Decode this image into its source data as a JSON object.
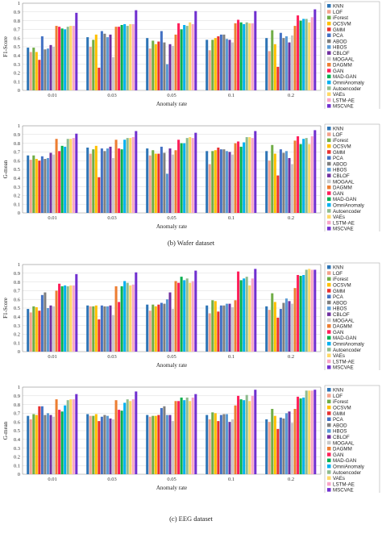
{
  "colors": [
    "#2e75b6",
    "#f4a28c",
    "#70ad47",
    "#ffc000",
    "#e83030",
    "#4472c4",
    "#7f7f7f",
    "#5b9bd5",
    "#7030a0",
    "#c9c9c9",
    "#ed7d31",
    "#ff1f5a",
    "#00b050",
    "#00b0f0",
    "#8fbc8f",
    "#ffd966",
    "#f8a5c8",
    "#7030d0"
  ],
  "captions": [
    "(b)   Wafer dataset",
    "(c)   EEG dataset"
  ],
  "chart_data": [
    {
      "type": "bar",
      "ylabel": "F1-Score",
      "xlabel": "Anomaly rate",
      "categories": [
        "0.01",
        "0.03",
        "0.05",
        "0.1",
        "0.2"
      ],
      "ylim": [
        0,
        1
      ],
      "yticks": [
        "0",
        "0.1",
        "0.2",
        "0.3",
        "0.4",
        "0.5",
        "0.6",
        "0.7",
        "0.8",
        "0.9",
        "1"
      ],
      "grid": true,
      "legend_position": "right",
      "series": [
        {
          "name": "KNN",
          "values": [
            0.49,
            0.61,
            0.6,
            0.58,
            0.6
          ]
        },
        {
          "name": "LOF",
          "values": [
            0.44,
            0.5,
            0.48,
            0.46,
            0.45
          ]
        },
        {
          "name": "iForest",
          "values": [
            0.49,
            0.58,
            0.57,
            0.58,
            0.69
          ]
        },
        {
          "name": "OCSVM",
          "values": [
            0.44,
            0.64,
            0.53,
            0.6,
            0.53
          ]
        },
        {
          "name": "GMM",
          "values": [
            0.35,
            0.26,
            0.56,
            0.62,
            0.27
          ]
        },
        {
          "name": "PCA",
          "values": [
            0.62,
            0.68,
            0.68,
            0.64,
            0.66
          ]
        },
        {
          "name": "ABOD",
          "values": [
            0.47,
            0.65,
            0.55,
            0.64,
            0.6
          ]
        },
        {
          "name": "HBOS",
          "values": [
            0.48,
            0.61,
            0.3,
            0.59,
            0.62
          ]
        },
        {
          "name": "CBLOF",
          "values": [
            0.52,
            0.64,
            0.53,
            0.58,
            0.55
          ]
        },
        {
          "name": "MOGAAL",
          "values": [
            0.5,
            0.38,
            0.51,
            0.55,
            0.63
          ]
        },
        {
          "name": "DAGMM",
          "values": [
            0.74,
            0.73,
            0.64,
            0.77,
            0.74
          ]
        },
        {
          "name": "GAN",
          "values": [
            0.73,
            0.73,
            0.77,
            0.81,
            0.86
          ]
        },
        {
          "name": "MAD-GAN",
          "values": [
            0.71,
            0.75,
            0.7,
            0.78,
            0.8
          ]
        },
        {
          "name": "OmniAnomaly",
          "values": [
            0.7,
            0.76,
            0.75,
            0.76,
            0.82
          ]
        },
        {
          "name": "Autoencoder",
          "values": [
            0.73,
            0.74,
            0.74,
            0.78,
            0.82
          ]
        },
        {
          "name": "VAEs",
          "values": [
            0.74,
            0.76,
            0.78,
            0.77,
            0.78
          ]
        },
        {
          "name": "LSTM-AE",
          "values": [
            0.74,
            0.76,
            0.76,
            0.77,
            0.84
          ]
        },
        {
          "name": "MSCVAE",
          "values": [
            0.89,
            0.92,
            0.91,
            0.91,
            0.93
          ]
        }
      ]
    },
    {
      "type": "bar",
      "ylabel": "G-mean",
      "xlabel": "Anomaly rate",
      "categories": [
        "0.01",
        "0.03",
        "0.05",
        "0.1",
        "0.2"
      ],
      "ylim": [
        0,
        1
      ],
      "yticks": [
        "0",
        "0.1",
        "0.2",
        "0.3",
        "0.4",
        "0.5",
        "0.6",
        "0.7",
        "0.8",
        "0.9",
        "1"
      ],
      "grid": true,
      "legend_position": "right",
      "series": [
        {
          "name": "KNN",
          "values": [
            0.66,
            0.75,
            0.74,
            0.71,
            0.71
          ]
        },
        {
          "name": "LOF",
          "values": [
            0.61,
            0.68,
            0.66,
            0.56,
            0.6
          ]
        },
        {
          "name": "iForest",
          "values": [
            0.66,
            0.73,
            0.72,
            0.71,
            0.78
          ]
        },
        {
          "name": "OCSVM",
          "values": [
            0.62,
            0.77,
            0.68,
            0.72,
            0.68
          ]
        },
        {
          "name": "GMM",
          "values": [
            0.6,
            0.41,
            0.68,
            0.75,
            0.43
          ]
        },
        {
          "name": "PCA",
          "values": [
            0.65,
            0.74,
            0.76,
            0.73,
            0.73
          ]
        },
        {
          "name": "ABOD",
          "values": [
            0.62,
            0.71,
            0.69,
            0.73,
            0.69
          ]
        },
        {
          "name": "HBOS",
          "values": [
            0.63,
            0.74,
            0.45,
            0.71,
            0.71
          ]
        },
        {
          "name": "CBLOF",
          "values": [
            0.69,
            0.76,
            0.74,
            0.7,
            0.63
          ]
        },
        {
          "name": "MOGAAL",
          "values": [
            0.67,
            0.63,
            0.67,
            0.67,
            0.56
          ]
        },
        {
          "name": "DAGMM",
          "values": [
            0.85,
            0.84,
            0.72,
            0.8,
            0.83
          ]
        },
        {
          "name": "GAN",
          "values": [
            0.71,
            0.74,
            0.84,
            0.82,
            0.88
          ]
        },
        {
          "name": "MAD-GAN",
          "values": [
            0.77,
            0.73,
            0.8,
            0.76,
            0.79
          ]
        },
        {
          "name": "OmniAnomaly",
          "values": [
            0.76,
            0.84,
            0.8,
            0.81,
            0.85
          ]
        },
        {
          "name": "Autoencoder",
          "values": [
            0.85,
            0.86,
            0.86,
            0.87,
            0.86
          ]
        },
        {
          "name": "VAEs",
          "values": [
            0.85,
            0.86,
            0.87,
            0.87,
            0.79
          ]
        },
        {
          "name": "LSTM-AE",
          "values": [
            0.86,
            0.87,
            0.86,
            0.86,
            0.88
          ]
        },
        {
          "name": "MSCVAE",
          "values": [
            0.91,
            0.94,
            0.92,
            0.94,
            0.95
          ]
        }
      ]
    },
    {
      "type": "bar",
      "ylabel": "F1-Score",
      "xlabel": "Anomaly rate",
      "categories": [
        "0.01",
        "0.03",
        "0.05",
        "0.1",
        "0.2"
      ],
      "ylim": [
        0,
        1
      ],
      "yticks": [
        "0",
        "0.1",
        "0.2",
        "0.3",
        "0.4",
        "0.5",
        "0.6",
        "0.7",
        "0.8",
        "0.9",
        "1"
      ],
      "grid": true,
      "legend_position": "right",
      "series": [
        {
          "name": "KNN",
          "values": [
            0.49,
            0.53,
            0.54,
            0.53,
            0.52
          ]
        },
        {
          "name": "LOF",
          "values": [
            0.45,
            0.52,
            0.47,
            0.44,
            0.48
          ]
        },
        {
          "name": "iForest",
          "values": [
            0.52,
            0.52,
            0.54,
            0.59,
            0.67
          ]
        },
        {
          "name": "OCSVM",
          "values": [
            0.51,
            0.53,
            0.52,
            0.58,
            0.57
          ]
        },
        {
          "name": "GMM",
          "values": [
            0.47,
            0.37,
            0.54,
            0.46,
            0.39
          ]
        },
        {
          "name": "PCA",
          "values": [
            0.65,
            0.53,
            0.56,
            0.53,
            0.49
          ]
        },
        {
          "name": "ABOD",
          "values": [
            0.68,
            0.52,
            0.55,
            0.53,
            0.56
          ]
        },
        {
          "name": "HBOS",
          "values": [
            0.5,
            0.52,
            0.6,
            0.55,
            0.61
          ]
        },
        {
          "name": "CBLOF",
          "values": [
            0.53,
            0.53,
            0.68,
            0.55,
            0.58
          ]
        },
        {
          "name": "MOGAAL",
          "values": [
            0.52,
            0.42,
            0.49,
            0.51,
            0.55
          ]
        },
        {
          "name": "DAGMM",
          "values": [
            0.7,
            0.75,
            0.81,
            0.59,
            0.73
          ]
        },
        {
          "name": "GAN",
          "values": [
            0.78,
            0.57,
            0.79,
            0.92,
            0.88
          ]
        },
        {
          "name": "MAD-GAN",
          "values": [
            0.75,
            0.75,
            0.86,
            0.82,
            0.87
          ]
        },
        {
          "name": "OmniAnomaly",
          "values": [
            0.76,
            0.81,
            0.82,
            0.84,
            0.88
          ]
        },
        {
          "name": "Autoencoder",
          "values": [
            0.75,
            0.79,
            0.84,
            0.86,
            0.94
          ]
        },
        {
          "name": "VAEs",
          "values": [
            0.76,
            0.76,
            0.79,
            0.76,
            0.95
          ]
        },
        {
          "name": "LSTM-AE",
          "values": [
            0.76,
            0.77,
            0.81,
            0.84,
            0.94
          ]
        },
        {
          "name": "MSCVAE",
          "values": [
            0.89,
            0.91,
            0.93,
            0.95,
            0.94
          ]
        }
      ]
    },
    {
      "type": "bar",
      "ylabel": "G-mean",
      "xlabel": "Anomaly rate",
      "categories": [
        "0.01",
        "0.03",
        "0.05",
        "0.1",
        "0.2"
      ],
      "ylim": [
        0,
        1
      ],
      "yticks": [
        "0",
        "0.1",
        "0.2",
        "0.3",
        "0.4",
        "0.5",
        "0.6",
        "0.7",
        "0.8",
        "0.9",
        "1"
      ],
      "grid": true,
      "legend_position": "right",
      "series": [
        {
          "name": "KNN",
          "values": [
            0.67,
            0.69,
            0.68,
            0.68,
            0.63
          ]
        },
        {
          "name": "LOF",
          "values": [
            0.63,
            0.67,
            0.66,
            0.63,
            0.6
          ]
        },
        {
          "name": "iForest",
          "values": [
            0.69,
            0.67,
            0.67,
            0.71,
            0.75
          ]
        },
        {
          "name": "OCSVM",
          "values": [
            0.68,
            0.69,
            0.67,
            0.7,
            0.67
          ]
        },
        {
          "name": "GMM",
          "values": [
            0.78,
            0.61,
            0.68,
            0.61,
            0.52
          ]
        },
        {
          "name": "PCA",
          "values": [
            0.78,
            0.66,
            0.76,
            0.68,
            0.65
          ]
        },
        {
          "name": "ABOD",
          "values": [
            0.68,
            0.68,
            0.78,
            0.69,
            0.64
          ]
        },
        {
          "name": "HBOS",
          "values": [
            0.7,
            0.67,
            0.68,
            0.69,
            0.7
          ]
        },
        {
          "name": "CBLOF",
          "values": [
            0.68,
            0.64,
            0.68,
            0.6,
            0.72
          ]
        },
        {
          "name": "MOGAAL",
          "values": [
            0.66,
            0.63,
            0.61,
            0.63,
            0.59
          ]
        },
        {
          "name": "DAGMM",
          "values": [
            0.86,
            0.85,
            0.84,
            0.79,
            0.75
          ]
        },
        {
          "name": "GAN",
          "values": [
            0.74,
            0.74,
            0.84,
            0.9,
            0.89
          ]
        },
        {
          "name": "MAD-GAN",
          "values": [
            0.72,
            0.73,
            0.88,
            0.86,
            0.87
          ]
        },
        {
          "name": "OmniAnomaly",
          "values": [
            0.79,
            0.82,
            0.85,
            0.85,
            0.88
          ]
        },
        {
          "name": "Autoencoder",
          "values": [
            0.85,
            0.86,
            0.88,
            0.91,
            0.96
          ]
        },
        {
          "name": "VAEs",
          "values": [
            0.86,
            0.84,
            0.84,
            0.84,
            0.96
          ]
        },
        {
          "name": "LSTM-AE",
          "values": [
            0.86,
            0.86,
            0.88,
            0.9,
            0.96
          ]
        },
        {
          "name": "MSCVAE",
          "values": [
            0.92,
            0.95,
            0.92,
            0.97,
            0.97
          ]
        }
      ]
    }
  ]
}
